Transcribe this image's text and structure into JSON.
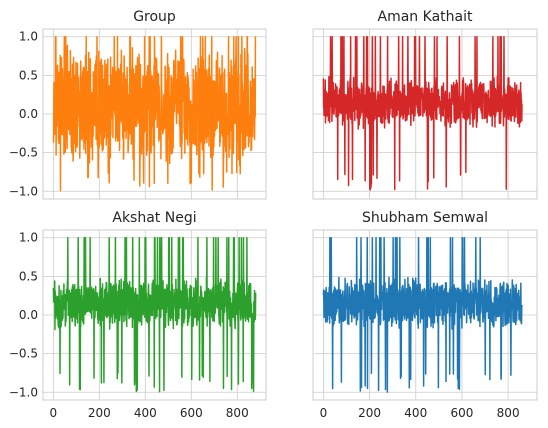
{
  "chart_data": [
    {
      "type": "line",
      "title": "Group",
      "color": "#ff7f0e",
      "xlim": [
        -45,
        925
      ],
      "ylim": [
        -1.1,
        1.1
      ],
      "xticks": [
        0,
        200,
        400,
        600,
        800
      ],
      "yticks": [
        -1.0,
        -0.5,
        0.0,
        0.5,
        1.0
      ],
      "show_xtick_labels": false,
      "show_ytick_labels": true,
      "series": [
        {
          "x_start": 0,
          "x_end": 880,
          "count": 881,
          "value_range": [
            -1.0,
            1.0
          ],
          "typical_range": [
            -0.7,
            0.9
          ]
        }
      ]
    },
    {
      "type": "line",
      "title": "Aman Kathait",
      "color": "#d62728",
      "xlim": [
        -45,
        925
      ],
      "ylim": [
        -1.1,
        1.1
      ],
      "xticks": [
        0,
        200,
        400,
        600,
        800
      ],
      "yticks": [
        -1.0,
        -0.5,
        0.0,
        0.5,
        1.0
      ],
      "show_xtick_labels": false,
      "show_ytick_labels": false,
      "series": [
        {
          "x_start": 0,
          "x_end": 860,
          "count": 861,
          "value_range": [
            -1.0,
            1.0
          ],
          "typical_range": [
            -0.2,
            0.5
          ]
        }
      ]
    },
    {
      "type": "line",
      "title": "Akshat Negi",
      "color": "#2ca02c",
      "xlim": [
        -45,
        925
      ],
      "ylim": [
        -1.1,
        1.1
      ],
      "xticks": [
        0,
        200,
        400,
        600,
        800
      ],
      "yticks": [
        -1.0,
        -0.5,
        0.0,
        0.5,
        1.0
      ],
      "show_xtick_labels": true,
      "show_ytick_labels": true,
      "series": [
        {
          "x_start": 0,
          "x_end": 880,
          "count": 881,
          "value_range": [
            -1.0,
            1.0
          ],
          "typical_range": [
            -0.2,
            0.5
          ]
        }
      ]
    },
    {
      "type": "line",
      "title": "Shubham Semwal",
      "color": "#1f77b4",
      "xlim": [
        -45,
        925
      ],
      "ylim": [
        -1.1,
        1.1
      ],
      "xticks": [
        0,
        200,
        400,
        600,
        800
      ],
      "yticks": [
        -1.0,
        -0.5,
        0.0,
        0.5,
        1.0
      ],
      "show_xtick_labels": true,
      "show_ytick_labels": false,
      "series": [
        {
          "x_start": 0,
          "x_end": 860,
          "count": 861,
          "value_range": [
            -1.0,
            1.0
          ],
          "typical_range": [
            -0.2,
            0.5
          ]
        }
      ]
    }
  ]
}
